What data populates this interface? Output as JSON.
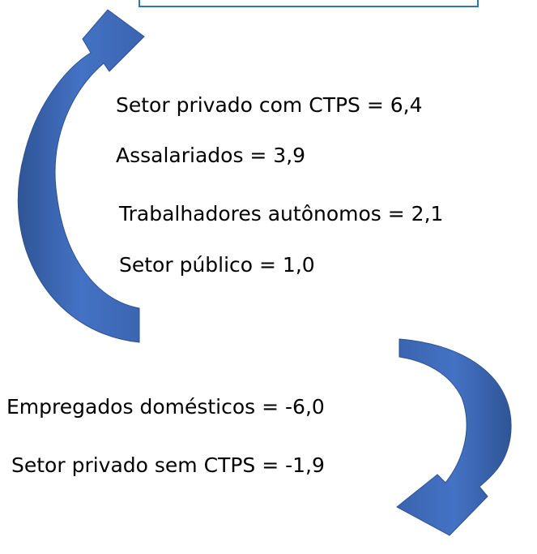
{
  "items": [
    "Setor privado com CTPS = 6,4",
    "Assalariados = 3,9",
    "Trabalhadores autônomos = 2,1",
    "Setor público = 1,0",
    "Empregados domésticos = -6,0",
    "Setor privado sem CTPS = -1,9"
  ]
}
